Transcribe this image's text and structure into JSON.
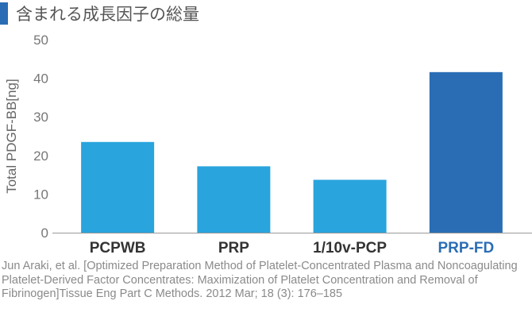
{
  "chart_data": {
    "type": "bar",
    "title": "含まれる成長因子の総量",
    "ylabel": "Total PDGF-BB[ng]",
    "xlabel": "",
    "categories": [
      "PCPWB",
      "PRP",
      "1/10v-PCP",
      "PRP-FD"
    ],
    "values": [
      23.5,
      17.2,
      13.7,
      41.6
    ],
    "ylim": [
      0,
      50
    ],
    "yticks": [
      0,
      10,
      20,
      30,
      40,
      50
    ],
    "grid": false,
    "legend": "none"
  },
  "colors": {
    "title_accent": "#2a6db5",
    "bar_default": "#29a4dd",
    "bar_highlight": "#2a6db5",
    "category_label": "#333333",
    "category_label_highlight": "#2a6db5",
    "axis": "#999999",
    "tick_label": "#777777"
  },
  "highlight_index": 3,
  "citation": "Jun Araki, et al. [Optimized Preparation Method of Platelet-Concentrated Plasma and Noncoagulating Platelet-Derived Factor Concentrates: Maximization of Platelet Concentration and Removal of Fibrinogen]Tissue Eng Part C Methods. 2012 Mar; 18 (3): 176–185"
}
